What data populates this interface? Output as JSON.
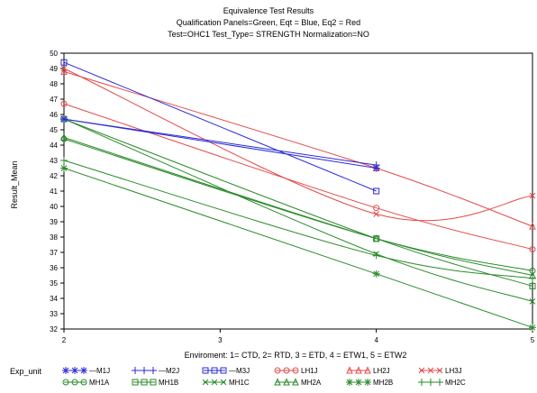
{
  "titles": {
    "line1": "Equivalence Test Results",
    "line2": "Qualification Panels=Green, Eqt  = Blue, Eq2 = Red",
    "line3": "Test=OHC1 Test_Type= STRENGTH Normalization=NO"
  },
  "chart_data": {
    "type": "line",
    "xlabel": "Enviroment: 1= CTD, 2= RTD, 3 = ETD, 4 = ETW1, 5 = ETW2",
    "ylabel": "Result_Mean",
    "xlim": [
      2,
      5
    ],
    "ylim": [
      32,
      50
    ],
    "x_ticks": [
      2,
      3,
      4,
      5
    ],
    "y_ticks": [
      32,
      33,
      34,
      35,
      36,
      37,
      38,
      39,
      40,
      41,
      42,
      43,
      44,
      45,
      46,
      47,
      48,
      49,
      50
    ],
    "grid": false,
    "legend_title": "Exp_unit",
    "legend_position": "bottom",
    "series": [
      {
        "name": "M1J",
        "color": "#2a2ad8",
        "marker": "star",
        "x": [
          2,
          4
        ],
        "y": [
          45.7,
          42.5
        ]
      },
      {
        "name": "M2J",
        "color": "#2a2ad8",
        "marker": "plus",
        "x": [
          2,
          4
        ],
        "y": [
          45.7,
          42.7
        ]
      },
      {
        "name": "M3J",
        "color": "#2a2ad8",
        "marker": "square",
        "x": [
          2,
          4
        ],
        "y": [
          49.4,
          41.0
        ]
      },
      {
        "name": "LH1J",
        "color": "#e44a4a",
        "marker": "circle",
        "x": [
          2,
          4,
          5
        ],
        "y": [
          46.7,
          39.9,
          37.2
        ]
      },
      {
        "name": "LH2J",
        "color": "#e44a4a",
        "marker": "triangle",
        "x": [
          2,
          4,
          5
        ],
        "y": [
          48.8,
          42.5,
          38.7
        ]
      },
      {
        "name": "LH3J",
        "color": "#e44a4a",
        "marker": "x",
        "x": [
          2,
          4,
          5
        ],
        "y": [
          49.0,
          39.5,
          40.7
        ]
      },
      {
        "name": "MH1A",
        "color": "#2a8a2a",
        "marker": "circle",
        "x": [
          2,
          4,
          5
        ],
        "y": [
          44.4,
          37.9,
          35.8
        ]
      },
      {
        "name": "MH1B",
        "color": "#2a8a2a",
        "marker": "square",
        "x": [
          2,
          4,
          5
        ],
        "y": [
          45.7,
          37.9,
          34.8
        ]
      },
      {
        "name": "MH1C",
        "color": "#2a8a2a",
        "marker": "x",
        "x": [
          2,
          4,
          5
        ],
        "y": [
          45.7,
          36.9,
          33.8
        ]
      },
      {
        "name": "MH2A",
        "color": "#2a8a2a",
        "marker": "triangle",
        "x": [
          2,
          4,
          5
        ],
        "y": [
          44.5,
          37.9,
          35.5
        ]
      },
      {
        "name": "MH2B",
        "color": "#2a8a2a",
        "marker": "star",
        "x": [
          2,
          4,
          5
        ],
        "y": [
          42.5,
          35.6,
          32.1
        ]
      },
      {
        "name": "MH2C",
        "color": "#2a8a2a",
        "marker": "plus",
        "x": [
          2,
          4,
          5
        ],
        "y": [
          43.0,
          36.8,
          35.3
        ]
      }
    ],
    "legend_labels": [
      "—M1J",
      "—M2J",
      "—M3J",
      "LH1J",
      "LH2J",
      "LH3J",
      "MH1A",
      "MH1B",
      "MH1C",
      "MH2A",
      "MH2B",
      "MH2C"
    ]
  }
}
